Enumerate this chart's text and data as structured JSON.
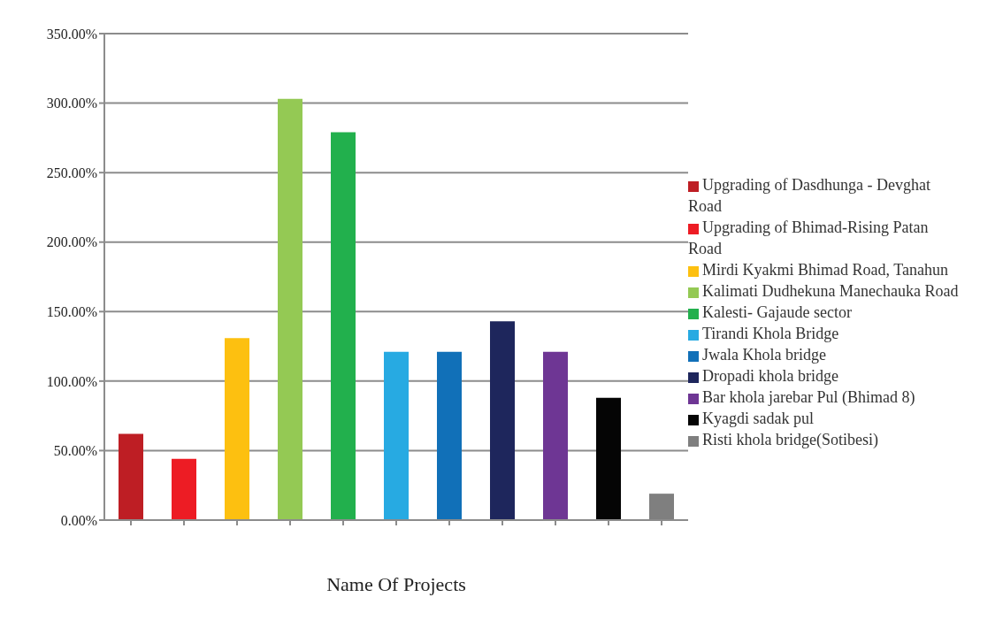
{
  "chart_data": {
    "type": "bar",
    "xlabel": "Name Of Projects",
    "categories": [
      null,
      null,
      null,
      null,
      null,
      null,
      null,
      null,
      null,
      null,
      null
    ],
    "series": [
      {
        "name": "Upgrading of Dasdhunga - Devghat Road",
        "color": "#be1e24",
        "values": [
          62,
          null,
          null,
          null,
          null,
          null,
          null,
          null,
          null,
          null,
          null
        ]
      },
      {
        "name": "Upgrading of Bhimad-Rising Patan Road",
        "color": "#ed1c24",
        "values": [
          null,
          44,
          null,
          null,
          null,
          null,
          null,
          null,
          null,
          null,
          null
        ]
      },
      {
        "name": "Mirdi Kyakmi Bhimad Road, Tanahun",
        "color": "#fdc010",
        "values": [
          null,
          null,
          131,
          null,
          null,
          null,
          null,
          null,
          null,
          null,
          null
        ]
      },
      {
        "name": "Kalimati Dudhekuna Manechauka Road",
        "color": "#94c954",
        "values": [
          null,
          null,
          null,
          303,
          null,
          null,
          null,
          null,
          null,
          null,
          null
        ]
      },
      {
        "name": "Kalesti- Gajaude sector",
        "color": "#22b04d",
        "values": [
          null,
          null,
          null,
          null,
          279,
          null,
          null,
          null,
          null,
          null,
          null
        ]
      },
      {
        "name": "Tirandi Khola Bridge",
        "color": "#27aae2",
        "values": [
          null,
          null,
          null,
          null,
          null,
          121,
          null,
          null,
          null,
          null,
          null
        ]
      },
      {
        "name": "Jwala Khola bridge",
        "color": "#1170b8",
        "values": [
          null,
          null,
          null,
          null,
          null,
          null,
          121,
          null,
          null,
          null,
          null
        ]
      },
      {
        "name": "Dropadi khola bridge",
        "color": "#1e265c",
        "values": [
          null,
          null,
          null,
          null,
          null,
          null,
          null,
          143,
          null,
          null,
          null
        ]
      },
      {
        "name": "Bar khola jarebar Pul (Bhimad 8)",
        "color": "#6e3694",
        "values": [
          null,
          null,
          null,
          null,
          null,
          null,
          null,
          null,
          121,
          null,
          null
        ]
      },
      {
        "name": "Kyagdi  sadak pul",
        "color": "#050505",
        "values": [
          null,
          null,
          null,
          null,
          null,
          null,
          null,
          null,
          null,
          88,
          null
        ]
      },
      {
        "name": "Risti khola bridge(Sotibesi)",
        "color": "#7f7f7f",
        "values": [
          null,
          null,
          null,
          null,
          null,
          null,
          null,
          null,
          null,
          null,
          19
        ]
      }
    ],
    "ylim": [
      0,
      350
    ],
    "yticks": [
      {
        "value": 0,
        "label": "0.00%"
      },
      {
        "value": 50,
        "label": "50.00%"
      },
      {
        "value": 100,
        "label": "100.00%"
      },
      {
        "value": 150,
        "label": "150.00%"
      },
      {
        "value": 200,
        "label": "200.00%"
      },
      {
        "value": 250,
        "label": "250.00%"
      },
      {
        "value": 300,
        "label": "300.00%"
      },
      {
        "value": 350,
        "label": "350.00%"
      }
    ],
    "grid": "y",
    "legend": "right"
  }
}
